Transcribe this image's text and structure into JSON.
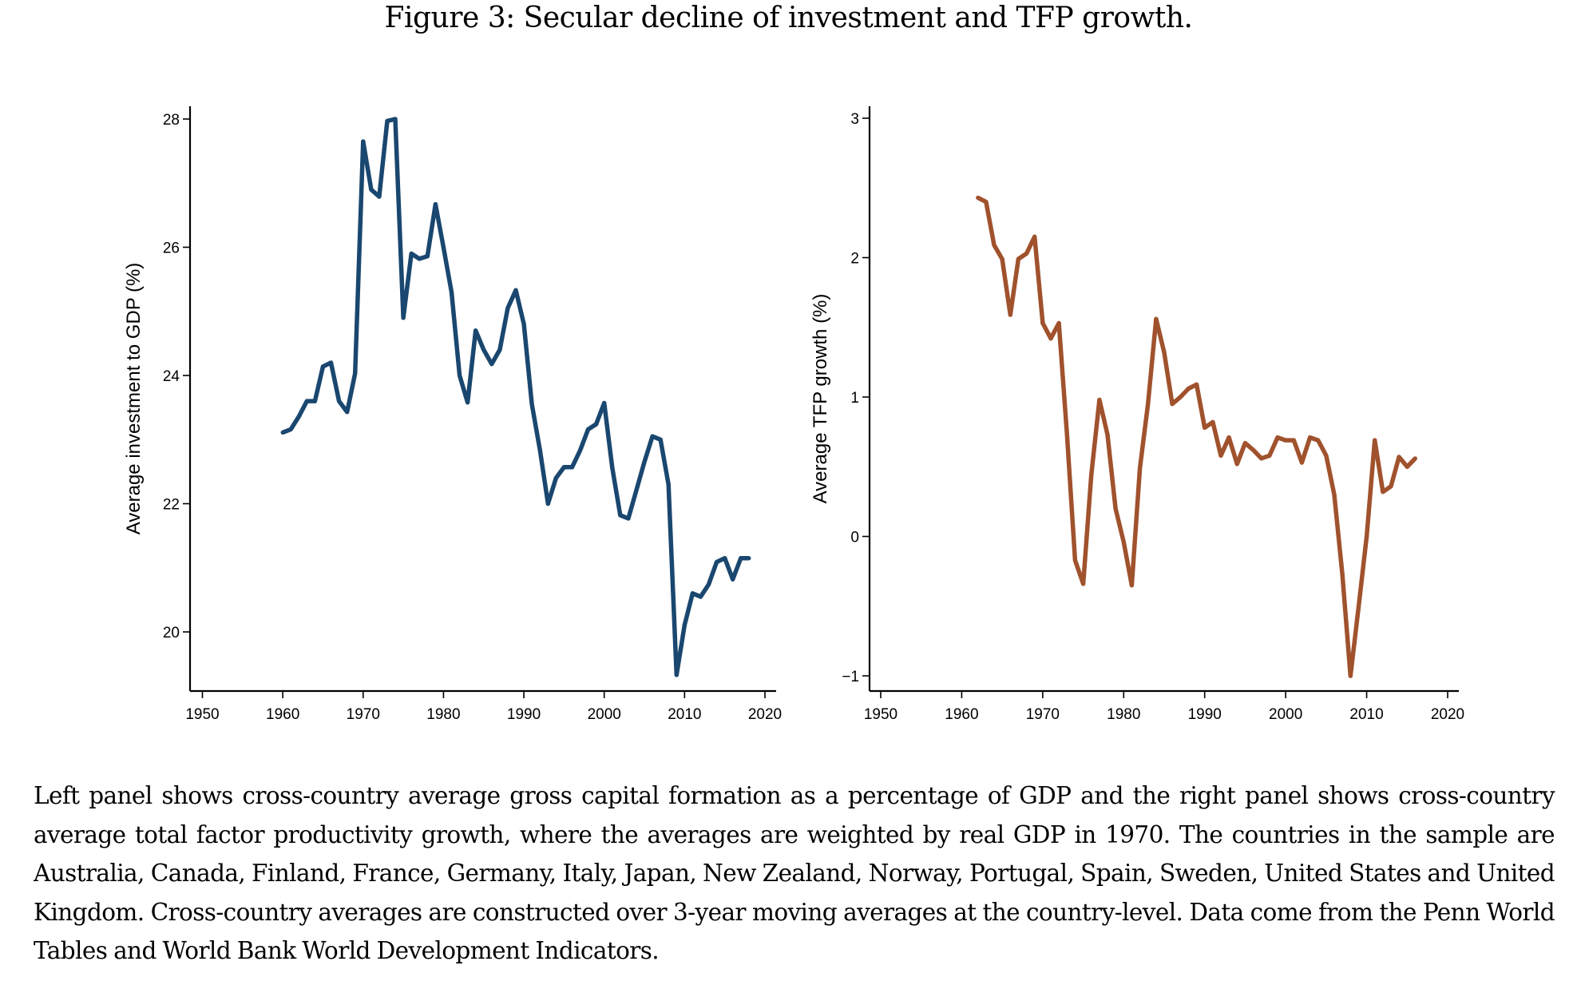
{
  "figure": {
    "title": "Figure 3: Secular decline of investment and TFP growth.",
    "caption": "Left panel shows cross-country average gross capital formation as a percentage of GDP and the right panel shows cross-country average total factor productivity growth, where the averages are weighted by real GDP in 1970. The countries in the sample are Australia, Canada, Finland, France, Germany, Italy, Japan, New Zealand, Norway, Portugal, Spain, Sweden, United States and United Kingdom. Cross-country averages are constructed over 3-year moving averages at the country-level. Data come from the Penn World Tables and World Bank World Development Indicators."
  },
  "chart_data": [
    {
      "type": "line",
      "title": "",
      "xlabel": "",
      "ylabel": "Average investment to GDP (%)",
      "xlim": [
        1950,
        2020
      ],
      "ylim": [
        19.2,
        28.2
      ],
      "xticks": [
        1950,
        1960,
        1970,
        1980,
        1990,
        2000,
        2010,
        2020
      ],
      "xtick_labels": [
        "1950",
        "1960",
        "1970",
        "1980",
        "1990",
        "2000",
        "2010",
        "2020"
      ],
      "yticks": [
        20,
        22,
        24,
        26,
        28
      ],
      "ytick_labels": [
        "20",
        "22",
        "24",
        "26",
        "28"
      ],
      "grid": false,
      "legend": "none",
      "series": [
        {
          "name": "Average investment to GDP",
          "color": "#1a476f",
          "x": [
            1960,
            1961,
            1962,
            1963,
            1964,
            1965,
            1966,
            1967,
            1968,
            1969,
            1970,
            1971,
            1972,
            1973,
            1974,
            1975,
            1976,
            1977,
            1978,
            1979,
            1980,
            1981,
            1982,
            1983,
            1984,
            1985,
            1986,
            1987,
            1988,
            1989,
            1990,
            1991,
            1992,
            1993,
            1994,
            1995,
            1996,
            1997,
            1998,
            1999,
            2000,
            2001,
            2002,
            2003,
            2004,
            2005,
            2006,
            2007,
            2008,
            2009,
            2010,
            2011,
            2012,
            2013,
            2014,
            2015,
            2016,
            2017,
            2018
          ],
          "values": [
            23.11,
            23.16,
            23.36,
            23.6,
            23.6,
            24.14,
            24.2,
            23.6,
            23.43,
            24.03,
            27.65,
            26.9,
            26.79,
            27.97,
            28.0,
            24.9,
            25.9,
            25.82,
            25.86,
            26.67,
            26.0,
            25.3,
            24.0,
            23.58,
            24.7,
            24.4,
            24.18,
            24.4,
            25.05,
            25.33,
            24.8,
            23.55,
            22.84,
            22.0,
            22.4,
            22.57,
            22.57,
            22.83,
            23.16,
            23.24,
            23.57,
            22.56,
            21.82,
            21.77,
            22.21,
            22.65,
            23.05,
            23.0,
            22.3,
            19.33,
            20.11,
            20.6,
            20.55,
            20.74,
            21.09,
            21.15,
            20.82,
            21.15,
            21.15
          ]
        }
      ]
    },
    {
      "type": "line",
      "title": "",
      "xlabel": "",
      "ylabel": "Average TFP growth (%)",
      "xlim": [
        1950,
        2020
      ],
      "ylim": [
        -1.1,
        3.1
      ],
      "xticks": [
        1950,
        1960,
        1970,
        1980,
        1990,
        2000,
        2010,
        2020
      ],
      "xtick_labels": [
        "1950",
        "1960",
        "1970",
        "1980",
        "1990",
        "2000",
        "2010",
        "2020"
      ],
      "yticks": [
        -1,
        0,
        1,
        2,
        3
      ],
      "ytick_labels": [
        "−1",
        "0",
        "1",
        "2",
        "3"
      ],
      "grid": false,
      "legend": "none",
      "series": [
        {
          "name": "Average TFP growth",
          "color": "#a0522d",
          "x": [
            1962,
            1963,
            1964,
            1965,
            1966,
            1967,
            1968,
            1969,
            1970,
            1971,
            1972,
            1973,
            1974,
            1975,
            1976,
            1977,
            1978,
            1979,
            1980,
            1981,
            1982,
            1983,
            1984,
            1985,
            1986,
            1987,
            1988,
            1989,
            1990,
            1991,
            1992,
            1993,
            1994,
            1995,
            1996,
            1997,
            1998,
            1999,
            2000,
            2001,
            2002,
            2003,
            2004,
            2005,
            2006,
            2007,
            2008,
            2009,
            2010,
            2011,
            2012,
            2013,
            2014,
            2015,
            2016
          ],
          "values": [
            2.43,
            2.4,
            2.09,
            1.99,
            1.59,
            1.99,
            2.03,
            2.15,
            1.53,
            1.42,
            1.53,
            0.73,
            -0.17,
            -0.34,
            0.44,
            0.98,
            0.73,
            0.2,
            -0.04,
            -0.35,
            0.49,
            0.95,
            1.56,
            1.32,
            0.95,
            1.0,
            1.06,
            1.09,
            0.78,
            0.82,
            0.58,
            0.71,
            0.52,
            0.67,
            0.62,
            0.56,
            0.58,
            0.71,
            0.69,
            0.69,
            0.53,
            0.71,
            0.69,
            0.58,
            0.3,
            -0.27,
            -1.0,
            -0.51,
            0.0,
            0.69,
            0.32,
            0.36,
            0.57,
            0.5,
            0.56
          ]
        }
      ]
    }
  ]
}
